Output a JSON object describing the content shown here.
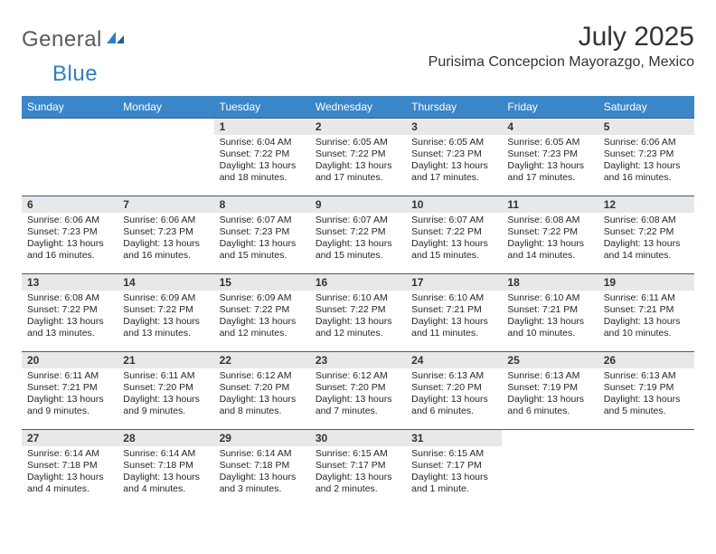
{
  "brand": {
    "general": "General",
    "blue": "Blue"
  },
  "title": "July 2025",
  "location": "Purisima Concepcion Mayorazgo, Mexico",
  "colors": {
    "header_bg": "#3a86c8",
    "header_fg": "#ffffff",
    "daynum_bg": "#e8e8e8",
    "rule": "#3a5f85",
    "logo_gray": "#5a5a5a",
    "logo_blue": "#2f7fc2"
  },
  "weekday_labels": [
    "Sunday",
    "Monday",
    "Tuesday",
    "Wednesday",
    "Thursday",
    "Friday",
    "Saturday"
  ],
  "weeks": [
    [
      null,
      null,
      {
        "n": "1",
        "sr": "Sunrise: 6:04 AM",
        "ss": "Sunset: 7:22 PM",
        "d1": "Daylight: 13 hours",
        "d2": "and 18 minutes."
      },
      {
        "n": "2",
        "sr": "Sunrise: 6:05 AM",
        "ss": "Sunset: 7:22 PM",
        "d1": "Daylight: 13 hours",
        "d2": "and 17 minutes."
      },
      {
        "n": "3",
        "sr": "Sunrise: 6:05 AM",
        "ss": "Sunset: 7:23 PM",
        "d1": "Daylight: 13 hours",
        "d2": "and 17 minutes."
      },
      {
        "n": "4",
        "sr": "Sunrise: 6:05 AM",
        "ss": "Sunset: 7:23 PM",
        "d1": "Daylight: 13 hours",
        "d2": "and 17 minutes."
      },
      {
        "n": "5",
        "sr": "Sunrise: 6:06 AM",
        "ss": "Sunset: 7:23 PM",
        "d1": "Daylight: 13 hours",
        "d2": "and 16 minutes."
      }
    ],
    [
      {
        "n": "6",
        "sr": "Sunrise: 6:06 AM",
        "ss": "Sunset: 7:23 PM",
        "d1": "Daylight: 13 hours",
        "d2": "and 16 minutes."
      },
      {
        "n": "7",
        "sr": "Sunrise: 6:06 AM",
        "ss": "Sunset: 7:23 PM",
        "d1": "Daylight: 13 hours",
        "d2": "and 16 minutes."
      },
      {
        "n": "8",
        "sr": "Sunrise: 6:07 AM",
        "ss": "Sunset: 7:23 PM",
        "d1": "Daylight: 13 hours",
        "d2": "and 15 minutes."
      },
      {
        "n": "9",
        "sr": "Sunrise: 6:07 AM",
        "ss": "Sunset: 7:22 PM",
        "d1": "Daylight: 13 hours",
        "d2": "and 15 minutes."
      },
      {
        "n": "10",
        "sr": "Sunrise: 6:07 AM",
        "ss": "Sunset: 7:22 PM",
        "d1": "Daylight: 13 hours",
        "d2": "and 15 minutes."
      },
      {
        "n": "11",
        "sr": "Sunrise: 6:08 AM",
        "ss": "Sunset: 7:22 PM",
        "d1": "Daylight: 13 hours",
        "d2": "and 14 minutes."
      },
      {
        "n": "12",
        "sr": "Sunrise: 6:08 AM",
        "ss": "Sunset: 7:22 PM",
        "d1": "Daylight: 13 hours",
        "d2": "and 14 minutes."
      }
    ],
    [
      {
        "n": "13",
        "sr": "Sunrise: 6:08 AM",
        "ss": "Sunset: 7:22 PM",
        "d1": "Daylight: 13 hours",
        "d2": "and 13 minutes."
      },
      {
        "n": "14",
        "sr": "Sunrise: 6:09 AM",
        "ss": "Sunset: 7:22 PM",
        "d1": "Daylight: 13 hours",
        "d2": "and 13 minutes."
      },
      {
        "n": "15",
        "sr": "Sunrise: 6:09 AM",
        "ss": "Sunset: 7:22 PM",
        "d1": "Daylight: 13 hours",
        "d2": "and 12 minutes."
      },
      {
        "n": "16",
        "sr": "Sunrise: 6:10 AM",
        "ss": "Sunset: 7:22 PM",
        "d1": "Daylight: 13 hours",
        "d2": "and 12 minutes."
      },
      {
        "n": "17",
        "sr": "Sunrise: 6:10 AM",
        "ss": "Sunset: 7:21 PM",
        "d1": "Daylight: 13 hours",
        "d2": "and 11 minutes."
      },
      {
        "n": "18",
        "sr": "Sunrise: 6:10 AM",
        "ss": "Sunset: 7:21 PM",
        "d1": "Daylight: 13 hours",
        "d2": "and 10 minutes."
      },
      {
        "n": "19",
        "sr": "Sunrise: 6:11 AM",
        "ss": "Sunset: 7:21 PM",
        "d1": "Daylight: 13 hours",
        "d2": "and 10 minutes."
      }
    ],
    [
      {
        "n": "20",
        "sr": "Sunrise: 6:11 AM",
        "ss": "Sunset: 7:21 PM",
        "d1": "Daylight: 13 hours",
        "d2": "and 9 minutes."
      },
      {
        "n": "21",
        "sr": "Sunrise: 6:11 AM",
        "ss": "Sunset: 7:20 PM",
        "d1": "Daylight: 13 hours",
        "d2": "and 9 minutes."
      },
      {
        "n": "22",
        "sr": "Sunrise: 6:12 AM",
        "ss": "Sunset: 7:20 PM",
        "d1": "Daylight: 13 hours",
        "d2": "and 8 minutes."
      },
      {
        "n": "23",
        "sr": "Sunrise: 6:12 AM",
        "ss": "Sunset: 7:20 PM",
        "d1": "Daylight: 13 hours",
        "d2": "and 7 minutes."
      },
      {
        "n": "24",
        "sr": "Sunrise: 6:13 AM",
        "ss": "Sunset: 7:20 PM",
        "d1": "Daylight: 13 hours",
        "d2": "and 6 minutes."
      },
      {
        "n": "25",
        "sr": "Sunrise: 6:13 AM",
        "ss": "Sunset: 7:19 PM",
        "d1": "Daylight: 13 hours",
        "d2": "and 6 minutes."
      },
      {
        "n": "26",
        "sr": "Sunrise: 6:13 AM",
        "ss": "Sunset: 7:19 PM",
        "d1": "Daylight: 13 hours",
        "d2": "and 5 minutes."
      }
    ],
    [
      {
        "n": "27",
        "sr": "Sunrise: 6:14 AM",
        "ss": "Sunset: 7:18 PM",
        "d1": "Daylight: 13 hours",
        "d2": "and 4 minutes."
      },
      {
        "n": "28",
        "sr": "Sunrise: 6:14 AM",
        "ss": "Sunset: 7:18 PM",
        "d1": "Daylight: 13 hours",
        "d2": "and 4 minutes."
      },
      {
        "n": "29",
        "sr": "Sunrise: 6:14 AM",
        "ss": "Sunset: 7:18 PM",
        "d1": "Daylight: 13 hours",
        "d2": "and 3 minutes."
      },
      {
        "n": "30",
        "sr": "Sunrise: 6:15 AM",
        "ss": "Sunset: 7:17 PM",
        "d1": "Daylight: 13 hours",
        "d2": "and 2 minutes."
      },
      {
        "n": "31",
        "sr": "Sunrise: 6:15 AM",
        "ss": "Sunset: 7:17 PM",
        "d1": "Daylight: 13 hours",
        "d2": "and 1 minute."
      },
      null,
      null
    ]
  ]
}
